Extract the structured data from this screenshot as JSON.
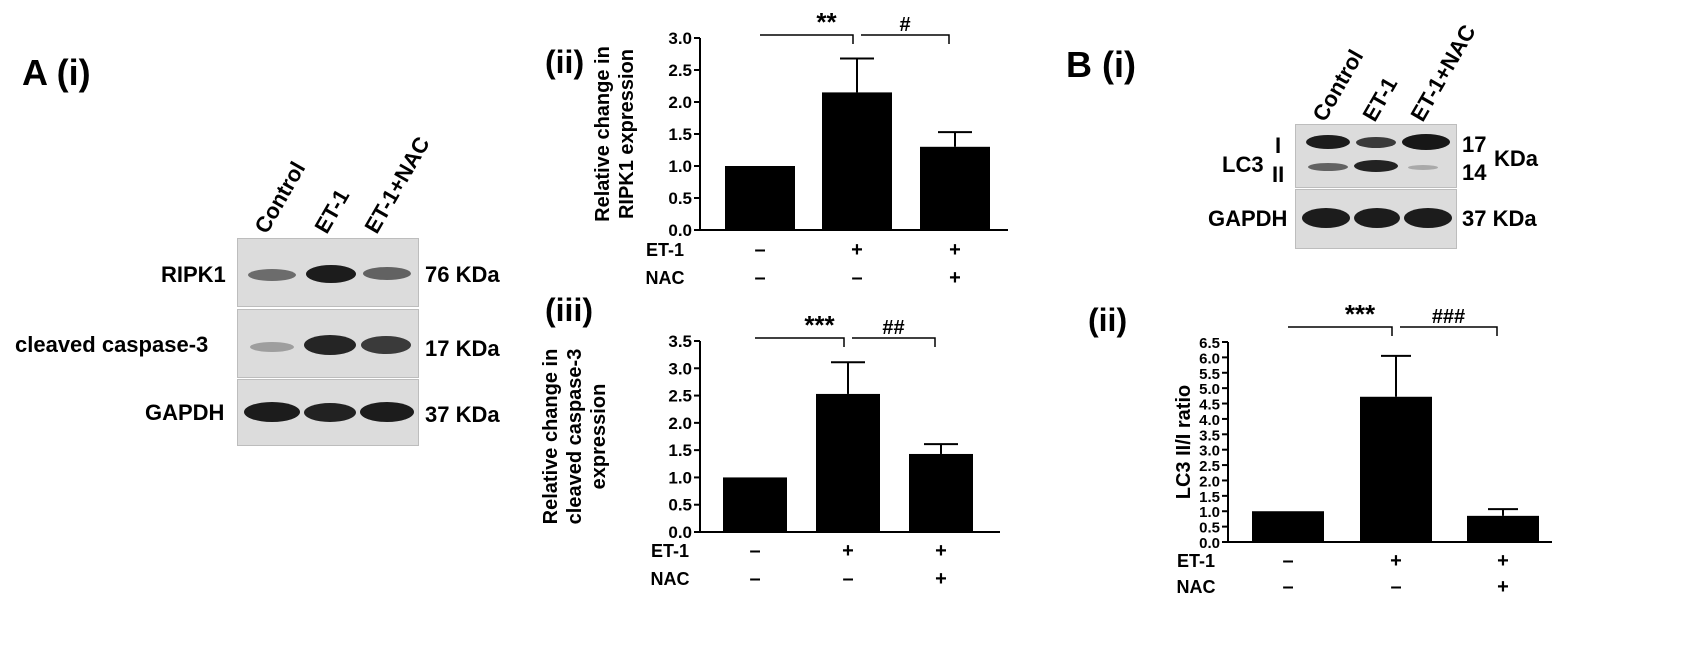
{
  "panels": {
    "a_i": "A (i)",
    "a_ii": "(ii)",
    "a_iii": "(iii)",
    "b_i": "B (i)",
    "b_ii": "(ii)"
  },
  "blot_a": {
    "lanes": [
      "Control",
      "ET-1",
      "ET-1+NAC"
    ],
    "rows": [
      {
        "label": "RIPK1",
        "size": "76 KDa"
      },
      {
        "label": "cleaved caspase-3",
        "size": "17 KDa"
      },
      {
        "label": "GAPDH",
        "size": "37 KDa"
      }
    ]
  },
  "blot_b": {
    "lanes": [
      "Control",
      "ET-1",
      "ET-1+NAC"
    ],
    "lc3_label": "LC3",
    "band_i": "I",
    "band_ii": "II",
    "size_i": "17",
    "size_ii": "14",
    "size_unit": "KDa",
    "gapdh_label": "GAPDH",
    "gapdh_size": "37 KDa"
  },
  "chart_data": [
    {
      "type": "bar",
      "panel": "A (ii)",
      "ylabel_lines": [
        "Relative change in",
        "RIPK1 expression"
      ],
      "ylim": [
        0,
        3.0
      ],
      "yticks": [
        "0.0",
        "0.5",
        "1.0",
        "1.5",
        "2.0",
        "2.5",
        "3.0"
      ],
      "tickvals": [
        0,
        0.5,
        1.0,
        1.5,
        2.0,
        2.5,
        3.0
      ],
      "values": [
        1.0,
        2.15,
        1.3
      ],
      "errors": [
        0,
        0.53,
        0.23
      ],
      "conditions": [
        {
          "name": "ET-1",
          "marks": [
            "–",
            "+",
            "+"
          ]
        },
        {
          "name": "NAC",
          "marks": [
            "–",
            "–",
            "+"
          ]
        }
      ],
      "significance": [
        {
          "from": 0,
          "to": 1,
          "label": "**"
        },
        {
          "from": 1,
          "to": 2,
          "label": "#"
        }
      ]
    },
    {
      "type": "bar",
      "panel": "A (iii)",
      "ylabel_lines": [
        "Relative change in",
        "cleaved caspase-3",
        "expression"
      ],
      "ylim": [
        0,
        3.5
      ],
      "yticks": [
        "0.0",
        "0.5",
        "1.0",
        "1.5",
        "2.0",
        "2.5",
        "3.0",
        "3.5"
      ],
      "tickvals": [
        0,
        0.5,
        1.0,
        1.5,
        2.0,
        2.5,
        3.0,
        3.5
      ],
      "values": [
        1.0,
        2.53,
        1.43
      ],
      "errors": [
        0,
        0.58,
        0.18
      ],
      "conditions": [
        {
          "name": "ET-1",
          "marks": [
            "–",
            "+",
            "+"
          ]
        },
        {
          "name": "NAC",
          "marks": [
            "–",
            "–",
            "+"
          ]
        }
      ],
      "significance": [
        {
          "from": 0,
          "to": 1,
          "label": "***"
        },
        {
          "from": 1,
          "to": 2,
          "label": "##"
        }
      ]
    },
    {
      "type": "bar",
      "panel": "B (ii)",
      "ylabel_lines": [
        "LC3 II/I ratio"
      ],
      "ylim": [
        0,
        6.5
      ],
      "yticks": [
        "0.0",
        "0.5",
        "1.0",
        "1.5",
        "2.0",
        "2.5",
        "3.0",
        "3.5",
        "4.0",
        "4.5",
        "5.0",
        "5.5",
        "6.0",
        "6.5"
      ],
      "tickvals": [
        0,
        0.5,
        1.0,
        1.5,
        2.0,
        2.5,
        3.0,
        3.5,
        4.0,
        4.5,
        5.0,
        5.5,
        6.0,
        6.5
      ],
      "values": [
        1.0,
        4.72,
        0.85
      ],
      "errors": [
        0,
        1.33,
        0.22
      ],
      "conditions": [
        {
          "name": "ET-1",
          "marks": [
            "–",
            "+",
            "+"
          ]
        },
        {
          "name": "NAC",
          "marks": [
            "–",
            "–",
            "+"
          ]
        }
      ],
      "significance": [
        {
          "from": 0,
          "to": 1,
          "label": "***"
        },
        {
          "from": 1,
          "to": 2,
          "label": "###"
        }
      ]
    }
  ]
}
